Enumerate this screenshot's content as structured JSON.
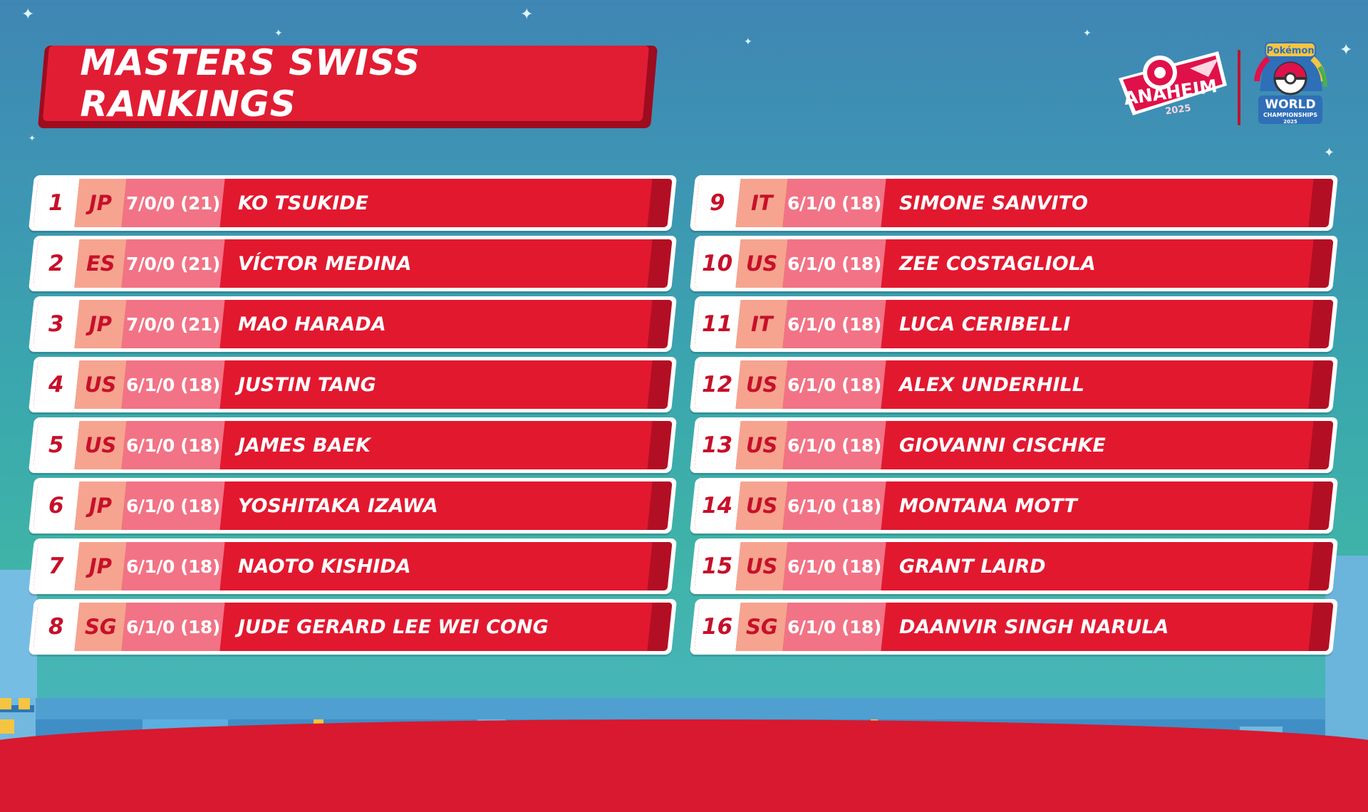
{
  "title": "MASTERS SWISS RANKINGS",
  "logos": {
    "event": "ANAHEIM",
    "event_year": "2025",
    "brand": "Pokémon",
    "championship_line1": "WORLD",
    "championship_line2": "CHAMPIONSHIPS",
    "championship_year": "2025"
  },
  "colors": {
    "banner_red": "#e11d33",
    "rank_bg": "#ffffff",
    "country_bg": "#f6a48f",
    "record_bg": "#f27385"
  },
  "left_column": [
    {
      "rank": "1",
      "country": "JP",
      "record": "7/0/0 (21)",
      "name": "KO TSUKIDE"
    },
    {
      "rank": "2",
      "country": "ES",
      "record": "7/0/0 (21)",
      "name": "VÍCTOR MEDINA"
    },
    {
      "rank": "3",
      "country": "JP",
      "record": "7/0/0 (21)",
      "name": "MAO HARADA"
    },
    {
      "rank": "4",
      "country": "US",
      "record": "6/1/0 (18)",
      "name": "JUSTIN TANG"
    },
    {
      "rank": "5",
      "country": "US",
      "record": "6/1/0 (18)",
      "name": "JAMES BAEK"
    },
    {
      "rank": "6",
      "country": "JP",
      "record": "6/1/0 (18)",
      "name": "YOSHITAKA IZAWA"
    },
    {
      "rank": "7",
      "country": "JP",
      "record": "6/1/0 (18)",
      "name": "NAOTO KISHIDA"
    },
    {
      "rank": "8",
      "country": "SG",
      "record": "6/1/0 (18)",
      "name": "JUDE GERARD LEE WEI CONG"
    }
  ],
  "right_column": [
    {
      "rank": "9",
      "country": "IT",
      "record": "6/1/0 (18)",
      "name": "SIMONE SANVITO"
    },
    {
      "rank": "10",
      "country": "US",
      "record": "6/1/0 (18)",
      "name": "ZEE COSTAGLIOLA"
    },
    {
      "rank": "11",
      "country": "IT",
      "record": "6/1/0 (18)",
      "name": "LUCA CERIBELLI"
    },
    {
      "rank": "12",
      "country": "US",
      "record": "6/1/0 (18)",
      "name": "ALEX UNDERHILL"
    },
    {
      "rank": "13",
      "country": "US",
      "record": "6/1/0 (18)",
      "name": "GIOVANNI CISCHKE"
    },
    {
      "rank": "14",
      "country": "US",
      "record": "6/1/0 (18)",
      "name": "MONTANA MOTT"
    },
    {
      "rank": "15",
      "country": "US",
      "record": "6/1/0 (18)",
      "name": "GRANT LAIRD"
    },
    {
      "rank": "16",
      "country": "SG",
      "record": "6/1/0 (18)",
      "name": "DAANVIR SINGH NARULA"
    }
  ]
}
